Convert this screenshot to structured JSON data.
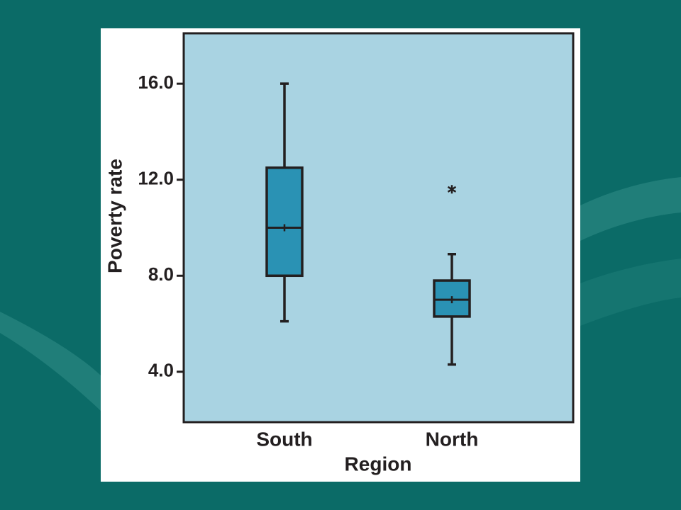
{
  "chart_data": {
    "type": "box",
    "x_label": "Region",
    "y_label": "Poverty rate",
    "categories": [
      "South",
      "North"
    ],
    "boxes": [
      {
        "min": 6.1,
        "q1": 8.0,
        "median": 10.0,
        "q3": 12.5,
        "max": 16.0,
        "mean": 10.0,
        "outliers": []
      },
      {
        "min": 4.3,
        "q1": 6.3,
        "median": 7.0,
        "q3": 7.8,
        "max": 8.9,
        "mean": 7.0,
        "outliers": [
          11.6
        ]
      }
    ],
    "color": "#2a92b4",
    "background": "#a9d3e2",
    "ylim": [
      1.9,
      18.1
    ],
    "yticks": [
      {
        "value": 4,
        "label": "4.0"
      },
      {
        "value": 8,
        "label": "8.0"
      },
      {
        "value": 12,
        "label": "12.0"
      },
      {
        "value": 16,
        "label": "16.0"
      }
    ]
  }
}
